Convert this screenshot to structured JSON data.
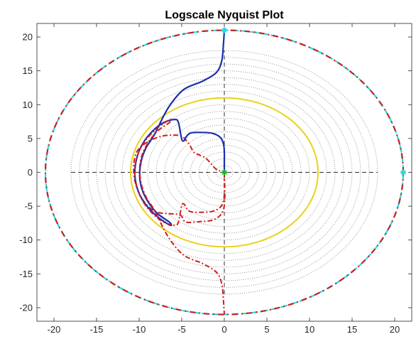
{
  "chart_data": {
    "type": "line",
    "title": "Logscale Nyquist Plot",
    "xlabel": "",
    "ylabel": "",
    "xlim": [
      -22,
      22
    ],
    "ylim": [
      -22,
      22
    ],
    "xticks": [
      -20,
      -15,
      -10,
      -5,
      0,
      5,
      10,
      15,
      20
    ],
    "yticks": [
      -20,
      -15,
      -10,
      -5,
      0,
      5,
      10,
      15,
      20
    ],
    "xtick_labels": [
      "-20",
      "-15",
      "-10",
      "-5",
      "0",
      "5",
      "10",
      "15",
      "20"
    ],
    "ytick_labels": [
      "-20",
      "-15",
      "-10",
      "-5",
      "0",
      "5",
      "10",
      "15",
      "20"
    ],
    "grid": false,
    "colors": {
      "positive_branch": "#1a2fb0",
      "negative_branch": "#cc1f1f",
      "unit_circle": "#e8d21a",
      "outer_contour": "#2ad8e0",
      "outer_contour_dash": "#cc1f1f",
      "grid_circles": "#7a7a7a",
      "axes_dash": "#333333",
      "marker_origin": "#22b022",
      "marker_edge": "#2ad8e0"
    },
    "grid_circle_radii": [
      1,
      2,
      3,
      4,
      5,
      6,
      7,
      8,
      9,
      10,
      11,
      12,
      13,
      14,
      15,
      16,
      17,
      18
    ],
    "unit_circle_radius": 11,
    "outer_contour_radius": 21,
    "crosshair_extent": [
      -18,
      18
    ],
    "series": [
      {
        "points": [
          [
            0,
            0
          ],
          [
            0.02,
            -1
          ],
          [
            0.05,
            -2.5
          ],
          [
            0.05,
            -4
          ],
          [
            -0.1,
            -5.5
          ],
          [
            -0.6,
            -6.5
          ],
          [
            -1.5,
            -7.1
          ],
          [
            -3,
            -7.3
          ],
          [
            -4.2,
            -7.4
          ],
          [
            -4.7,
            -7.2
          ],
          [
            -5,
            -6.5
          ],
          [
            -5.5,
            -6.2
          ],
          [
            -6.5,
            -6.1
          ],
          [
            -7.5,
            -6.0
          ],
          [
            -8.5,
            -5.5
          ],
          [
            -9.5,
            -4.2
          ],
          [
            -10.2,
            -2.5
          ],
          [
            -10.6,
            -0.5
          ],
          [
            -10.6,
            1.5
          ],
          [
            -10.2,
            3.2
          ],
          [
            -9.0,
            4.5
          ],
          [
            -7.5,
            5.3
          ],
          [
            -6,
            5.5
          ],
          [
            -5,
            5.3
          ],
          [
            -4.2,
            4.3
          ],
          [
            -3.6,
            3.0
          ],
          [
            -3.0,
            2.6
          ],
          [
            -2.2,
            2.1
          ],
          [
            -1.5,
            1.2
          ],
          [
            -1.0,
            0.5
          ],
          [
            -0.5,
            0.2
          ]
        ]
      },
      {
        "points": [
          [
            0,
            0
          ],
          [
            0,
            1.5
          ],
          [
            0,
            3
          ],
          [
            -0.1,
            4.2
          ],
          [
            -0.5,
            5.2
          ],
          [
            -1.5,
            5.8
          ],
          [
            -3,
            5.9
          ],
          [
            -4,
            5.8
          ],
          [
            -4.5,
            5.2
          ],
          [
            -4.7,
            4.7
          ],
          [
            -5,
            4.9
          ],
          [
            -5.4,
            7.4
          ],
          [
            -5.9,
            7.8
          ],
          [
            -7.2,
            7.3
          ],
          [
            -8.5,
            6.0
          ],
          [
            -9.6,
            4.2
          ],
          [
            -10.3,
            2.0
          ],
          [
            -10.5,
            -0.5
          ],
          [
            -10.1,
            -2.8
          ],
          [
            -9.2,
            -4.8
          ],
          [
            -7.8,
            -6.6
          ],
          [
            -6.4,
            -7.8
          ],
          [
            -6.4,
            -7.4
          ],
          [
            -8.0,
            -5.9
          ],
          [
            -9.3,
            -3.6
          ],
          [
            -9.9,
            -1.2
          ],
          [
            -9.8,
            1.4
          ],
          [
            -9.2,
            3.6
          ],
          [
            -8.2,
            5.6
          ],
          [
            -6.6,
            9.5
          ],
          [
            -4.8,
            12.2
          ],
          [
            -2.5,
            13.5
          ],
          [
            -0.9,
            14.8
          ],
          [
            -0.3,
            16.5
          ],
          [
            -0.1,
            19.0
          ],
          [
            0,
            21
          ]
        ]
      },
      {
        "points": [
          [
            0,
            0
          ],
          [
            0,
            -1.5
          ],
          [
            0,
            -3
          ],
          [
            -0.1,
            -4.2
          ],
          [
            -0.5,
            -5.2
          ],
          [
            -1.5,
            -5.8
          ],
          [
            -3,
            -5.9
          ],
          [
            -4,
            -5.8
          ],
          [
            -4.5,
            -5.2
          ],
          [
            -4.7,
            -4.7
          ],
          [
            -5,
            -4.9
          ],
          [
            -5.4,
            -7.4
          ],
          [
            -5.9,
            -7.8
          ],
          [
            -7.2,
            -7.3
          ],
          [
            -8.5,
            -6.0
          ],
          [
            -9.6,
            -4.2
          ],
          [
            -10.3,
            -2.0
          ],
          [
            -10.5,
            0.5
          ],
          [
            -10.1,
            2.8
          ],
          [
            -9.2,
            4.8
          ],
          [
            -7.8,
            6.6
          ],
          [
            -6.4,
            7.8
          ],
          [
            -6.4,
            7.4
          ],
          [
            -8.0,
            5.9
          ],
          [
            -9.3,
            3.6
          ],
          [
            -9.9,
            1.2
          ],
          [
            -9.8,
            -1.4
          ],
          [
            -9.2,
            -3.6
          ],
          [
            -8.2,
            -5.6
          ],
          [
            -6.6,
            -9.5
          ],
          [
            -4.8,
            -12.2
          ],
          [
            -2.5,
            -13.5
          ],
          [
            -0.9,
            -14.8
          ],
          [
            -0.3,
            -16.5
          ],
          [
            -0.1,
            -19.0
          ],
          [
            0,
            -21
          ]
        ]
      }
    ],
    "markers": [
      {
        "x": 0,
        "y": 0,
        "color": "#22b022"
      },
      {
        "x": 0,
        "y": 21,
        "color": "#2ad8e0"
      },
      {
        "x": 21,
        "y": 0,
        "color": "#2ad8e0"
      }
    ]
  }
}
